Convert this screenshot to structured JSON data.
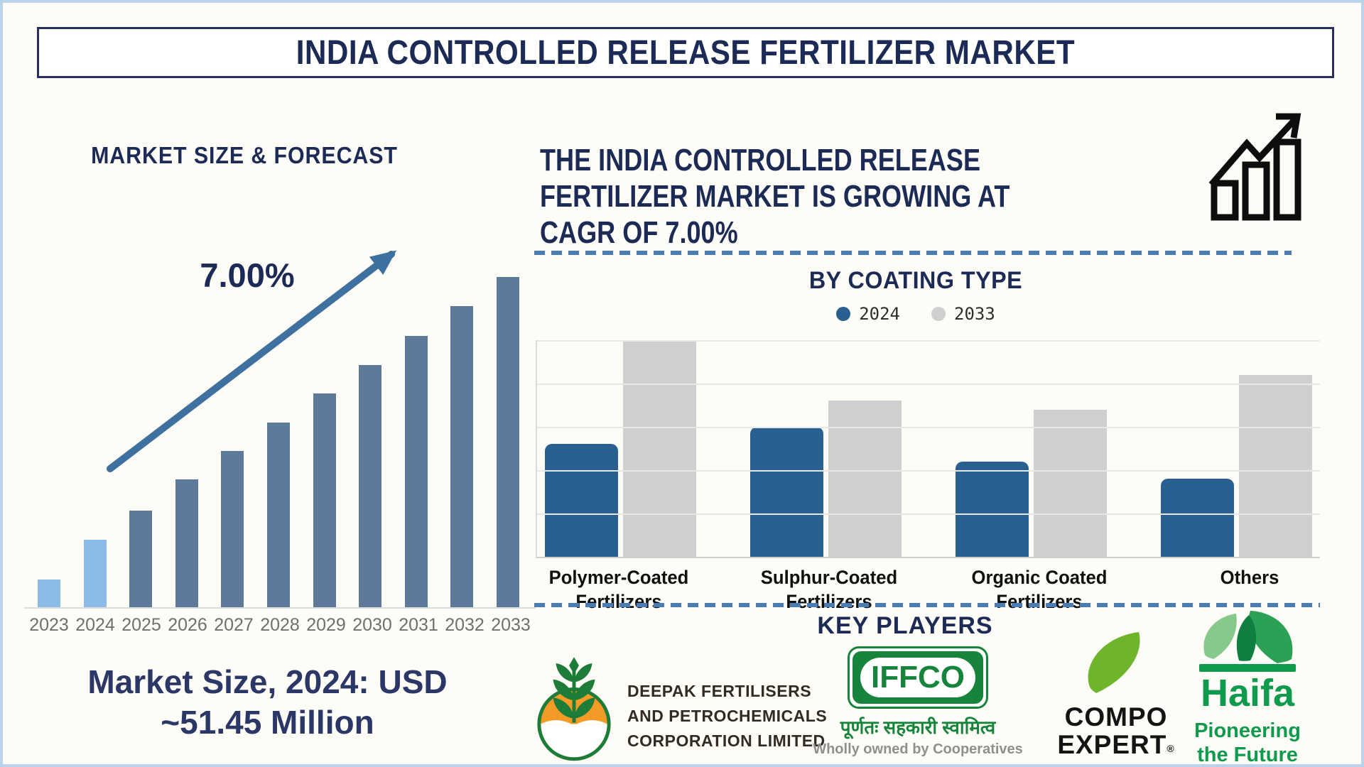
{
  "title": "INDIA CONTROLLED RELEASE FERTILIZER MARKET",
  "left": {
    "heading": "MARKET SIZE & FORECAST",
    "cagr_label": "7.00%",
    "market_size_line1": "Market Size, 2024: USD",
    "market_size_line2": "~51.45 Million"
  },
  "right": {
    "headline_line1": "THE INDIA CONTROLLED RELEASE",
    "headline_line2": "FERTILIZER MARKET IS GROWING AT",
    "headline_line3": "CAGR OF 7.00%",
    "section_title": "BY COATING TYPE",
    "key_players_title": "KEY PLAYERS"
  },
  "chart_data": [
    {
      "type": "bar",
      "title": "MARKET SIZE & FORECAST",
      "categories": [
        "2023",
        "2024",
        "2025",
        "2026",
        "2027",
        "2028",
        "2029",
        "2030",
        "2031",
        "2032",
        "2033"
      ],
      "values": [
        8.4,
        20.5,
        29.2,
        38.7,
        47.3,
        55.9,
        64.8,
        73.4,
        82.1,
        91.1,
        100
      ],
      "ylim": [
        0,
        100
      ],
      "ylabel": "",
      "xlabel": "",
      "grid": false,
      "annotation": "7.00% CAGR trend arrow",
      "light_bar_count": 2,
      "bar_colors": {
        "actual": "#8dbbe7",
        "forecast": "#5c7b9a"
      },
      "note": "stylized bars, no value axis shown; Market Size 2024: USD ~51.45 Million"
    },
    {
      "type": "bar",
      "title": "BY COATING TYPE",
      "categories": [
        "Polymer-Coated\nFertilizers",
        "Sulphur-Coated\nFertilizers",
        "Organic Coated\nFertilizers",
        "Others"
      ],
      "series": [
        {
          "name": "2024",
          "color": "#2a608f",
          "rounded": true,
          "values": [
            2.6,
            3.0,
            2.2,
            1.8
          ]
        },
        {
          "name": "2033",
          "color": "#cfcfcf",
          "rounded": false,
          "values": [
            5.0,
            3.6,
            3.4,
            4.2
          ]
        }
      ],
      "ylim": [
        0,
        5
      ],
      "gridline_count": 5,
      "grid": true,
      "legend_position": "top",
      "note": "no numeric axis labels shown; values estimated from gridlines"
    }
  ],
  "logos": {
    "deepak": {
      "line1": "DEEPAK FERTILISERS",
      "line2": "AND PETROCHEMICALS",
      "line3": "CORPORATION LIMITED"
    },
    "iffco": {
      "name": "IFFCO",
      "hindi": "पूर्णतः सहकारी स्वामित्व",
      "tagline": "Wholly owned by Cooperatives"
    },
    "compo": {
      "line1": "COMPO",
      "line2": "EXPERT",
      "reg": "®"
    },
    "haifa": {
      "name": "Haifa",
      "tagline_line1": "Pioneering",
      "tagline_line2": "the Future"
    }
  },
  "colors": {
    "navy_text": "#1c2a56",
    "bar_actual_light_blue": "#8dbbe7",
    "bar_forecast_steel": "#5c7b9a",
    "coating_2024_blue": "#2a608f",
    "coating_2033_gray": "#cfcfcf",
    "trend_arrow": "#3e719f",
    "dashed_divider": "#4b7cb4",
    "year_label_gray": "#6f6f6f",
    "frame_light_blue": "#b9d3ea",
    "iffco_green": "#17843b",
    "compo_leaf_green": "#6fb52c",
    "haifa_green": "#0f9a4d",
    "deepak_orange": "#f39b27",
    "deepak_green": "#1e7c39"
  }
}
